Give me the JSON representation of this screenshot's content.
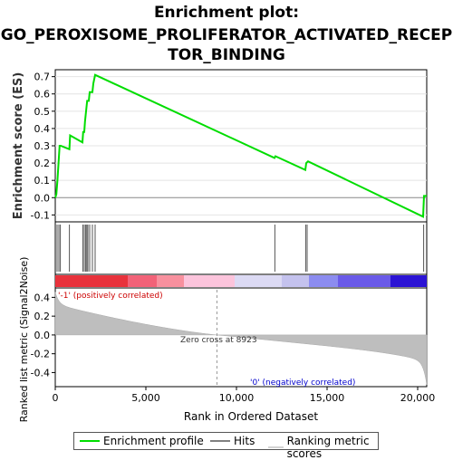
{
  "title_lines": [
    "Enrichment plot:",
    "GO_PEROXISOME_PROLIFERATOR_ACTIVATED_RECEP",
    "TOR_BINDING"
  ],
  "chart_data": {
    "type": "line",
    "x_max": 20500,
    "es_axis": {
      "label": "Enrichment score (ES)",
      "ylim": [
        -0.14,
        0.74
      ],
      "ticks": [
        -0.1,
        0.0,
        0.1,
        0.2,
        0.3,
        0.4,
        0.5,
        0.6,
        0.7
      ],
      "tick_labels": [
        "-0.1",
        "0.0",
        "0.1",
        "0.2",
        "0.3",
        "0.4",
        "0.5",
        "0.6",
        "0.7"
      ]
    },
    "es_profile": {
      "name": "Enrichment profile",
      "color": "#00dd00",
      "x": [
        0,
        60,
        120,
        180,
        240,
        300,
        780,
        820,
        1500,
        1540,
        1600,
        1640,
        1700,
        1760,
        1850,
        1900,
        2050,
        2100,
        2200,
        12100,
        12150,
        13800,
        13850,
        13950,
        20300,
        20350,
        20500
      ],
      "y": [
        0.0,
        0.02,
        0.1,
        0.2,
        0.3,
        0.3,
        0.28,
        0.36,
        0.32,
        0.38,
        0.38,
        0.44,
        0.5,
        0.56,
        0.56,
        0.61,
        0.61,
        0.66,
        0.71,
        0.23,
        0.24,
        0.16,
        0.2,
        0.21,
        -0.11,
        0.01,
        0.01
      ]
    },
    "hits": [
      100,
      200,
      280,
      780,
      1520,
      1600,
      1680,
      1740,
      1800,
      1900,
      2050,
      2200,
      12120,
      13820,
      13900,
      20330
    ],
    "ranked_metric_axis": {
      "label": "Ranked list metric (Signal2Noise)",
      "ylim": [
        -0.55,
        0.5
      ],
      "ticks": [
        -0.4,
        -0.2,
        0.0,
        0.2,
        0.4
      ],
      "tick_labels": [
        "-0.4",
        "-0.2",
        "0.0",
        "0.2",
        "0.4"
      ]
    },
    "x_axis": {
      "label": "Rank in Ordered Dataset",
      "ticks": [
        0,
        5000,
        10000,
        15000,
        20000
      ],
      "tick_labels": [
        "0",
        "5,000",
        "10,000",
        "15,000",
        "20,000"
      ]
    },
    "zero_cross": 8923,
    "annotations": {
      "positive": "'-1' (positively correlated)",
      "negative": "'0' (negatively correlated)",
      "zero_cross": "Zero cross at 8923"
    },
    "heat_bar": [
      {
        "from": 0,
        "to": 4000,
        "color": "#e8323c"
      },
      {
        "from": 4000,
        "to": 5600,
        "color": "#f26278"
      },
      {
        "from": 5600,
        "to": 7100,
        "color": "#f8909e"
      },
      {
        "from": 7100,
        "to": 9900,
        "color": "#fcc4dc"
      },
      {
        "from": 9900,
        "to": 12500,
        "color": "#dcdaf4"
      },
      {
        "from": 12500,
        "to": 14000,
        "color": "#c4c2ee"
      },
      {
        "from": 14000,
        "to": 15600,
        "color": "#8c8cf0"
      },
      {
        "from": 15600,
        "to": 18500,
        "color": "#6a5ae8"
      },
      {
        "from": 18500,
        "to": 20500,
        "color": "#2c14d4"
      }
    ],
    "legend": [
      {
        "label": "Enrichment profile",
        "color": "#00dd00"
      },
      {
        "label": "Hits",
        "color": "#808080"
      },
      {
        "label": "Ranking metric scores",
        "color": "#d4d4d4"
      }
    ]
  }
}
